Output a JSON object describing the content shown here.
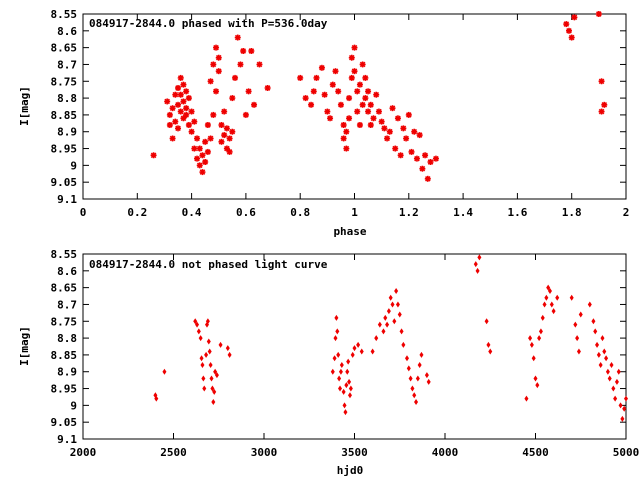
{
  "colors": {
    "points": "#ee0000",
    "axis": "#000000",
    "background": "#ffffff"
  },
  "chart_data": [
    {
      "type": "scatter",
      "title": "084917-2844.0 phased with P=536.0day",
      "xlabel": "phase",
      "ylabel": "I[mag]",
      "xlim": [
        0,
        2
      ],
      "ylim": [
        8.55,
        9.1
      ],
      "y_inverted": true,
      "grid": false,
      "xticks": [
        "0",
        "0.2",
        "0.4",
        "0.6",
        "0.8",
        "1",
        "1.2",
        "1.4",
        "1.6",
        "1.8",
        "2"
      ],
      "yticks": [
        "8.55",
        "8.6",
        "8.65",
        "8.7",
        "8.75",
        "8.8",
        "8.85",
        "8.9",
        "8.95",
        "9",
        "9.05",
        "9.1"
      ],
      "marker": "star",
      "series": [
        {
          "x": [
            0.26,
            0.31,
            0.32,
            0.32,
            0.33,
            0.33,
            0.34,
            0.34,
            0.35,
            0.35,
            0.35,
            0.36,
            0.36,
            0.36,
            0.37,
            0.37,
            0.37,
            0.38,
            0.38,
            0.38,
            0.39,
            0.39,
            0.4,
            0.4,
            0.41,
            0.41,
            0.42,
            0.42,
            0.43,
            0.43,
            0.44,
            0.44,
            0.45,
            0.45,
            0.46,
            0.46,
            0.47,
            0.47,
            0.48,
            0.48,
            0.49,
            0.49,
            0.5,
            0.5,
            0.51,
            0.51,
            0.52,
            0.52,
            0.53,
            0.53,
            0.54,
            0.54,
            0.55,
            0.55,
            0.56,
            0.57,
            0.58,
            0.59,
            0.6,
            0.61,
            0.62,
            0.63,
            0.65,
            0.68,
            0.8,
            0.82,
            0.84,
            0.85,
            0.86,
            0.88,
            0.89,
            0.9,
            0.91,
            0.92,
            0.93,
            0.94,
            0.95,
            0.96,
            0.96,
            0.97,
            0.97,
            0.98,
            0.98,
            0.99,
            0.99,
            1.0,
            1.0,
            1.01,
            1.01,
            1.02,
            1.02,
            1.03,
            1.03,
            1.04,
            1.04,
            1.05,
            1.05,
            1.06,
            1.06,
            1.07,
            1.08,
            1.09,
            1.1,
            1.11,
            1.12,
            1.13,
            1.14,
            1.15,
            1.16,
            1.17,
            1.18,
            1.19,
            1.2,
            1.21,
            1.22,
            1.23,
            1.24,
            1.25,
            1.26,
            1.27,
            1.28,
            1.3,
            1.78,
            1.79,
            1.8,
            1.81,
            1.9,
            1.91,
            1.91,
            1.92
          ],
          "y": [
            8.97,
            8.81,
            8.85,
            8.88,
            8.83,
            8.92,
            8.79,
            8.87,
            8.77,
            8.82,
            8.89,
            8.74,
            8.79,
            8.84,
            8.76,
            8.81,
            8.86,
            8.78,
            8.83,
            8.85,
            8.8,
            8.88,
            8.84,
            8.9,
            8.87,
            8.95,
            8.92,
            8.98,
            8.95,
            9.0,
            8.97,
            9.02,
            8.99,
            8.93,
            8.96,
            8.88,
            8.92,
            8.75,
            8.85,
            8.7,
            8.78,
            8.65,
            8.72,
            8.68,
            8.88,
            8.93,
            8.91,
            8.84,
            8.95,
            8.89,
            8.96,
            8.92,
            8.9,
            8.8,
            8.74,
            8.62,
            8.7,
            8.66,
            8.85,
            8.78,
            8.66,
            8.82,
            8.7,
            8.77,
            8.74,
            8.8,
            8.82,
            8.78,
            8.74,
            8.71,
            8.79,
            8.84,
            8.86,
            8.76,
            8.72,
            8.78,
            8.82,
            8.88,
            8.92,
            8.95,
            8.9,
            8.86,
            8.8,
            8.74,
            8.68,
            8.65,
            8.72,
            8.78,
            8.84,
            8.88,
            8.76,
            8.82,
            8.7,
            8.8,
            8.74,
            8.84,
            8.78,
            8.88,
            8.82,
            8.86,
            8.79,
            8.84,
            8.87,
            8.89,
            8.92,
            8.9,
            8.83,
            8.95,
            8.86,
            8.97,
            8.89,
            8.92,
            8.85,
            8.96,
            8.9,
            8.98,
            8.91,
            9.01,
            8.97,
            9.04,
            8.99,
            8.98,
            8.58,
            8.6,
            8.62,
            8.56,
            8.55,
            8.75,
            8.84,
            8.82
          ]
        }
      ]
    },
    {
      "type": "scatter",
      "title": "084917-2844.0 not phased light curve",
      "xlabel": "hjd0",
      "ylabel": "I[mag]",
      "xlim": [
        2000,
        5000
      ],
      "ylim": [
        8.55,
        9.1
      ],
      "y_inverted": true,
      "grid": false,
      "xticks": [
        "2000",
        "2500",
        "3000",
        "3500",
        "4000",
        "4500",
        "5000"
      ],
      "yticks": [
        "8.55",
        "8.6",
        "8.65",
        "8.7",
        "8.75",
        "8.8",
        "8.85",
        "8.9",
        "8.95",
        "9",
        "9.05",
        "9.1"
      ],
      "marker": "diamond",
      "series": [
        {
          "x": [
            2400,
            2405,
            2450,
            2620,
            2630,
            2640,
            2650,
            2655,
            2660,
            2665,
            2670,
            2680,
            2685,
            2690,
            2695,
            2700,
            2705,
            2710,
            2715,
            2720,
            2725,
            2730,
            2740,
            2760,
            2800,
            2810,
            3380,
            3390,
            3395,
            3400,
            3405,
            3410,
            3415,
            3420,
            3425,
            3430,
            3440,
            3445,
            3450,
            3455,
            3460,
            3465,
            3470,
            3475,
            3480,
            3490,
            3500,
            3520,
            3540,
            3600,
            3620,
            3640,
            3660,
            3670,
            3680,
            3690,
            3700,
            3710,
            3720,
            3730,
            3740,
            3750,
            3760,
            3770,
            3790,
            3800,
            3810,
            3820,
            3830,
            3840,
            3850,
            3860,
            3870,
            3900,
            3910,
            4170,
            4180,
            4190,
            4230,
            4240,
            4250,
            4450,
            4470,
            4480,
            4490,
            4500,
            4510,
            4520,
            4530,
            4540,
            4550,
            4560,
            4570,
            4580,
            4590,
            4600,
            4620,
            4700,
            4720,
            4730,
            4740,
            4750,
            4800,
            4820,
            4830,
            4840,
            4850,
            4860,
            4870,
            4880,
            4890,
            4900,
            4910,
            4920,
            4930,
            4940,
            4950,
            4960,
            4970,
            4980,
            4990,
            5000
          ],
          "y": [
            8.97,
            8.98,
            8.9,
            8.75,
            8.76,
            8.78,
            8.8,
            8.86,
            8.88,
            8.92,
            8.95,
            8.85,
            8.76,
            8.75,
            8.81,
            8.84,
            8.88,
            8.92,
            8.95,
            8.99,
            8.96,
            8.9,
            8.91,
            8.82,
            8.83,
            8.85,
            8.9,
            8.86,
            8.8,
            8.74,
            8.78,
            8.85,
            8.92,
            8.95,
            8.9,
            8.88,
            8.96,
            9.0,
            9.02,
            8.94,
            8.9,
            8.87,
            8.93,
            8.97,
            8.95,
            8.85,
            8.83,
            8.82,
            8.84,
            8.84,
            8.8,
            8.76,
            8.78,
            8.74,
            8.76,
            8.72,
            8.68,
            8.7,
            8.75,
            8.66,
            8.7,
            8.73,
            8.78,
            8.82,
            8.86,
            8.89,
            8.92,
            8.95,
            8.97,
            8.99,
            8.92,
            8.88,
            8.85,
            8.91,
            8.93,
            8.58,
            8.6,
            8.56,
            8.75,
            8.82,
            8.84,
            8.98,
            8.8,
            8.82,
            8.86,
            8.92,
            8.94,
            8.8,
            8.78,
            8.74,
            8.7,
            8.68,
            8.65,
            8.66,
            8.7,
            8.72,
            8.68,
            8.68,
            8.76,
            8.8,
            8.84,
            8.73,
            8.7,
            8.75,
            8.78,
            8.82,
            8.85,
            8.88,
            8.8,
            8.84,
            8.86,
            8.9,
            8.92,
            8.88,
            8.95,
            8.98,
            8.93,
            8.9,
            9.0,
            9.04,
            9.01,
            8.98
          ]
        }
      ]
    }
  ]
}
